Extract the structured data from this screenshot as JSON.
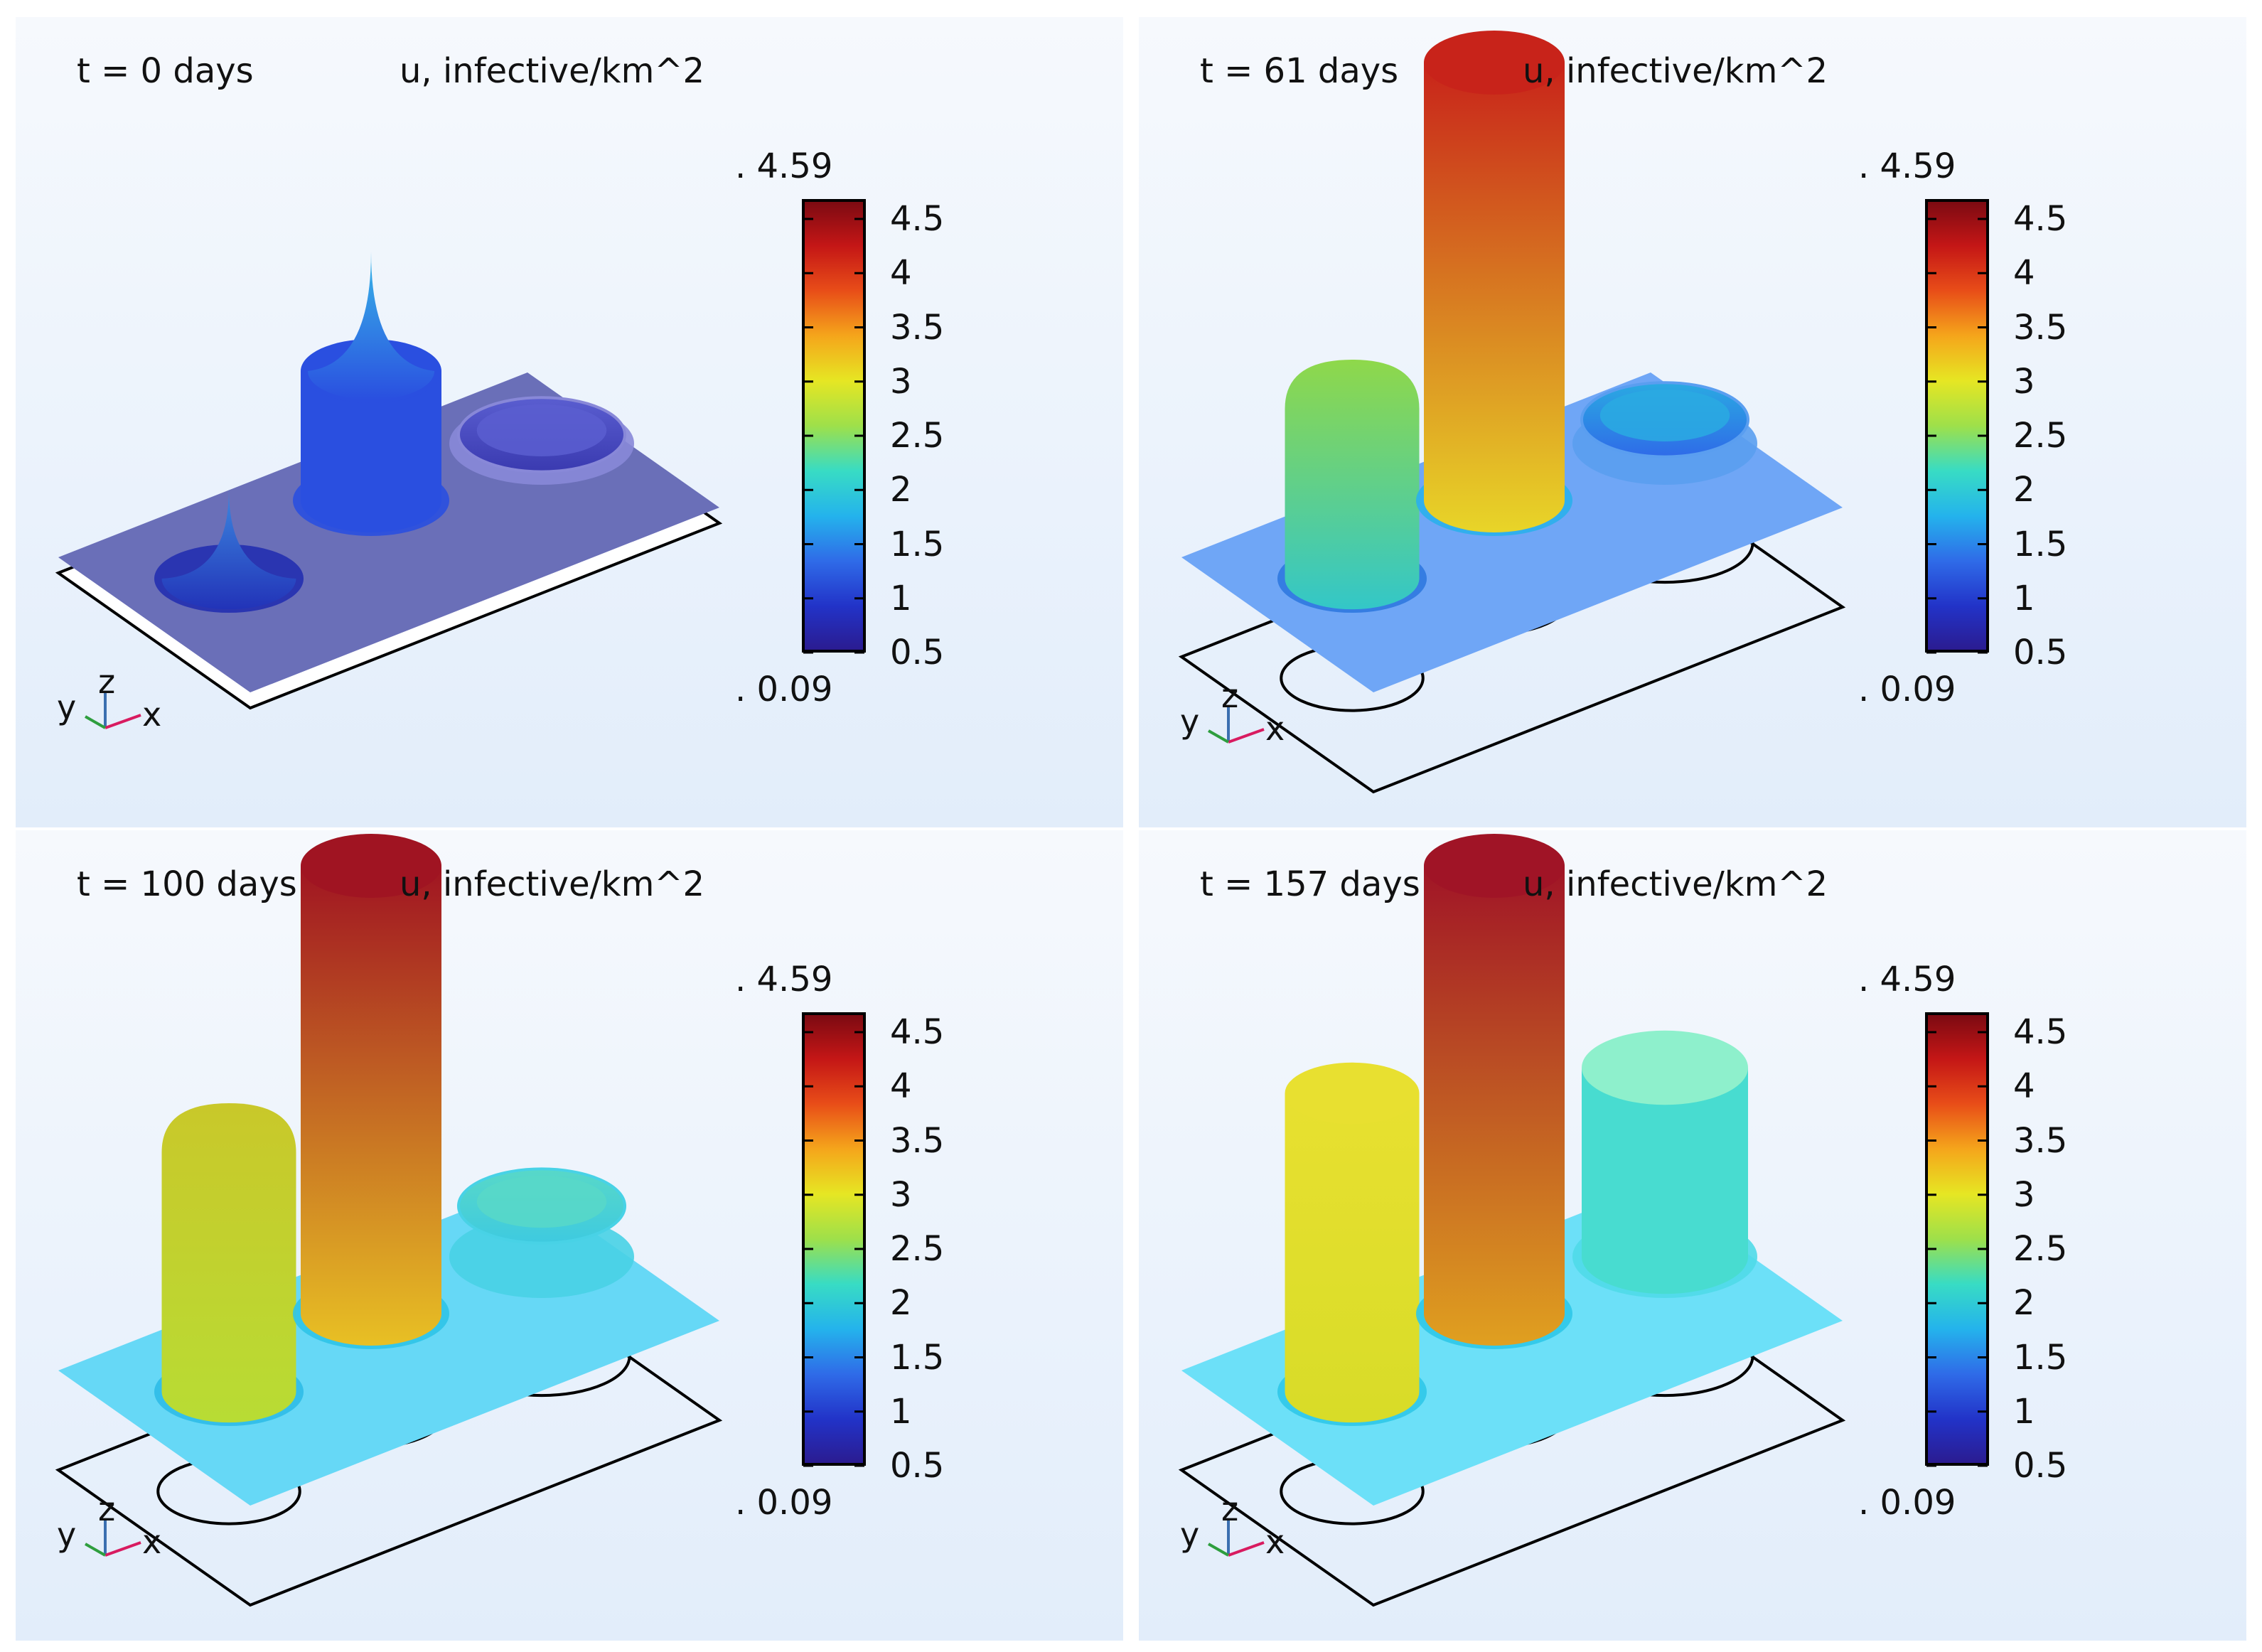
{
  "colorbar": {
    "max_label": ". 4.59",
    "min_label": ". 0.09",
    "ticks": [
      "4.5",
      "4",
      "3.5",
      "3",
      "2.5",
      "2",
      "1.5",
      "1",
      "0.5"
    ],
    "colormap": [
      "#2b1b8f",
      "#2233c8",
      "#2f6be8",
      "#24b3ec",
      "#38dcc4",
      "#9ee04a",
      "#e6e623",
      "#f5a51b",
      "#e84d18",
      "#c41616",
      "#7a0a12"
    ]
  },
  "axes": {
    "y": "y",
    "z": "z",
    "x": "x"
  },
  "panels": [
    {
      "time_label": "t = 0 days",
      "unit_label": "u, infective/km^2",
      "plane_color": "#6a6fb8",
      "frame_visible": false,
      "features": [
        {
          "kind": "cone",
          "value": 0.9,
          "top": "#3d8ae0",
          "body": "#2233b8",
          "rim": "#232fb0"
        },
        {
          "kind": "cylinder_cone",
          "value": 2.5,
          "top": "#38b8e8",
          "body": "#2a4fe0",
          "rim": "#2a4fe0"
        },
        {
          "kind": "dish",
          "value": 0.3,
          "top": "#5a5ed0",
          "body": "#3a3ab0",
          "rim": "#8888d8"
        }
      ]
    },
    {
      "time_label": "t = 61 days",
      "unit_label": "u, infective/km^2",
      "plane_color": "#6fa6f6",
      "frame_visible": true,
      "features": [
        {
          "kind": "dome",
          "value": 2.2,
          "top": "#8fd84a",
          "body": "#33c7c8",
          "rim": "#2f79e0"
        },
        {
          "kind": "cylinder",
          "value": 4.4,
          "top": "#c8231a",
          "body": "#e8d528",
          "rim": "#2ab0ec"
        },
        {
          "kind": "dish",
          "value": 0.8,
          "top": "#2aaae2",
          "body": "#2f6be8",
          "rim": "#5a9ef0"
        }
      ]
    },
    {
      "time_label": "t = 100 days",
      "unit_label": "u, infective/km^2",
      "plane_color": "#66d8f6",
      "frame_visible": true,
      "features": [
        {
          "kind": "dome",
          "value": 2.9,
          "top": "#c9c82a",
          "body": "#b8dc34",
          "rim": "#2fbce8"
        },
        {
          "kind": "cylinder",
          "value": 4.5,
          "top": "#a01422",
          "body": "#e8c024",
          "rim": "#2fc4e8"
        },
        {
          "kind": "dish",
          "value": 1.7,
          "top": "#58d8c8",
          "body": "#3ecae0",
          "rim": "#48d2e6"
        }
      ]
    },
    {
      "time_label": "t = 157 days",
      "unit_label": "u, infective/km^2",
      "plane_color": "#6ce0f8",
      "frame_visible": true,
      "features": [
        {
          "kind": "cylinder",
          "value": 3.0,
          "top": "#e8e030",
          "body": "#d8dc28",
          "rim": "#30c8e8"
        },
        {
          "kind": "cylinder",
          "value": 4.5,
          "top": "#a01426",
          "body": "#e0a020",
          "rim": "#2fc8e8"
        },
        {
          "kind": "disc",
          "value": 1.9,
          "top": "#8ef0cc",
          "body": "#48dcd0",
          "rim": "#50dae8"
        }
      ]
    }
  ]
}
